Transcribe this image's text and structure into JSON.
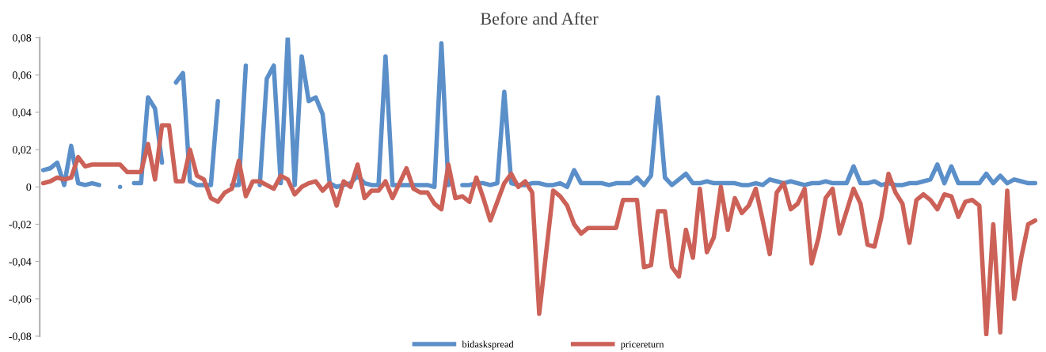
{
  "chart_data": {
    "type": "line",
    "title": "Before and After",
    "categories": [
      null,
      null,
      null,
      null,
      null,
      null,
      null,
      null,
      null,
      null,
      null,
      null,
      null,
      null,
      null,
      null,
      null,
      null,
      null,
      null,
      null,
      null,
      null,
      null,
      null,
      null,
      null,
      null,
      null,
      null,
      null,
      null,
      null,
      null,
      null,
      null,
      null,
      null,
      null,
      null,
      null,
      null,
      null,
      null,
      null,
      null,
      null,
      null,
      null,
      null,
      null,
      null,
      null,
      null,
      null,
      null,
      null,
      null,
      null,
      null,
      null,
      null,
      null,
      null,
      null,
      null,
      null,
      null,
      null,
      null,
      null,
      null,
      null,
      null,
      null,
      null,
      null,
      null,
      null,
      null,
      null,
      null,
      null,
      null,
      null,
      null,
      null,
      null,
      null,
      null,
      null,
      null,
      null,
      null,
      null,
      null,
      null,
      null,
      null,
      null,
      null,
      null,
      null,
      null,
      null,
      null,
      null,
      null,
      null,
      null,
      null,
      null,
      null,
      null,
      null,
      null,
      null,
      null,
      null,
      null,
      null,
      null,
      null,
      null,
      null,
      null,
      null,
      null,
      null,
      null,
      null,
      null,
      null,
      null,
      null,
      null,
      null,
      null,
      null,
      null,
      null,
      null,
      null
    ],
    "series": [
      {
        "name": "bidaskspread",
        "color": "#5b8fc9",
        "values": [
          0.009,
          0.01,
          0.013,
          0.001,
          0.022,
          0.002,
          0.001,
          0.002,
          0.001,
          null,
          null,
          0.0,
          null,
          0.002,
          0.002,
          0.048,
          0.042,
          0.013,
          null,
          0.056,
          0.061,
          0.003,
          0.001,
          0.001,
          0.001,
          0.046,
          null,
          0.001,
          0.001,
          0.065,
          null,
          0.001,
          0.058,
          0.065,
          0.002,
          0.08,
          0.001,
          0.07,
          0.046,
          0.048,
          0.039,
          0.002,
          0.0,
          0.001,
          0.002,
          0.006,
          0.002,
          0.001,
          0.001,
          0.07,
          0.001,
          0.001,
          0.001,
          0.001,
          0.001,
          0.001,
          0.0,
          0.077,
          0.001,
          null,
          0.001,
          0.001,
          0.002,
          0.002,
          0.001,
          0.002,
          0.051,
          0.002,
          0.001,
          0.001,
          0.002,
          0.002,
          0.001,
          0.001,
          0.002,
          0.0,
          0.009,
          0.002,
          0.002,
          0.002,
          0.002,
          0.001,
          0.002,
          0.002,
          0.002,
          0.005,
          0.001,
          0.006,
          0.048,
          0.005,
          0.001,
          0.004,
          0.007,
          0.002,
          0.002,
          0.003,
          0.002,
          0.002,
          0.002,
          0.002,
          0.001,
          0.001,
          0.002,
          0.001,
          0.004,
          0.003,
          0.002,
          0.003,
          0.002,
          0.001,
          0.002,
          0.002,
          0.003,
          0.002,
          0.002,
          0.002,
          0.011,
          0.002,
          0.002,
          0.003,
          0.001,
          0.002,
          0.001,
          0.001,
          0.002,
          0.002,
          0.003,
          0.004,
          0.012,
          0.002,
          0.011,
          0.002,
          0.002,
          0.002,
          0.002,
          0.007,
          0.002,
          0.006,
          0.002,
          0.004,
          0.003,
          0.002,
          0.002
        ]
      },
      {
        "name": "pricereturn",
        "color": "#cc6158",
        "values": [
          0.002,
          0.003,
          0.005,
          0.004,
          0.005,
          0.016,
          0.011,
          0.012,
          0.012,
          0.012,
          0.012,
          0.012,
          0.008,
          0.008,
          0.008,
          0.023,
          0.004,
          0.033,
          0.033,
          0.003,
          0.003,
          0.02,
          0.006,
          0.004,
          -0.006,
          -0.008,
          -0.003,
          -0.001,
          0.014,
          -0.005,
          0.003,
          0.003,
          0.001,
          -0.001,
          0.006,
          0.004,
          -0.004,
          0.0,
          0.002,
          0.003,
          -0.002,
          0.002,
          -0.01,
          0.003,
          0.0,
          0.012,
          -0.006,
          -0.002,
          -0.002,
          0.003,
          -0.006,
          0.002,
          0.01,
          -0.001,
          -0.003,
          -0.003,
          -0.009,
          -0.012,
          0.012,
          -0.006,
          -0.005,
          -0.008,
          0.005,
          -0.006,
          -0.018,
          -0.008,
          0.002,
          0.007,
          0.0,
          0.003,
          -0.003,
          -0.068,
          -0.035,
          -0.002,
          -0.005,
          -0.01,
          -0.02,
          -0.025,
          -0.022,
          -0.022,
          -0.022,
          -0.022,
          -0.022,
          -0.007,
          -0.007,
          -0.007,
          -0.043,
          -0.042,
          -0.013,
          -0.013,
          -0.043,
          -0.048,
          -0.023,
          -0.038,
          -0.001,
          -0.035,
          -0.027,
          0.0,
          -0.023,
          -0.006,
          -0.014,
          -0.01,
          -0.001,
          -0.018,
          -0.036,
          -0.003,
          0.002,
          -0.012,
          -0.009,
          -0.001,
          -0.041,
          -0.027,
          -0.006,
          -0.001,
          -0.025,
          -0.013,
          -0.001,
          -0.009,
          -0.031,
          -0.032,
          -0.016,
          0.007,
          -0.003,
          -0.009,
          -0.03,
          -0.007,
          -0.004,
          -0.007,
          -0.012,
          -0.004,
          -0.005,
          -0.016,
          -0.008,
          -0.007,
          -0.01,
          -0.079,
          -0.02,
          -0.078,
          -0.002,
          -0.06,
          -0.038,
          -0.02,
          -0.018
        ]
      }
    ],
    "ylim": [
      -0.08,
      0.08
    ],
    "yticks": [
      {
        "value": -0.08,
        "label": "-0,08"
      },
      {
        "value": -0.06,
        "label": "-0,06"
      },
      {
        "value": -0.04,
        "label": "-0,04"
      },
      {
        "value": -0.02,
        "label": "-0,02"
      },
      0,
      {
        "value": 0.02,
        "label": "0,02"
      },
      {
        "value": 0.04,
        "label": "0,04"
      },
      {
        "value": 0.06,
        "label": "0,06"
      },
      {
        "value": 0.08,
        "label": "0,08"
      }
    ],
    "tick_labels": "y",
    "grid": false,
    "legend": "bottom",
    "line_style": "solid",
    "marker": "none"
  }
}
